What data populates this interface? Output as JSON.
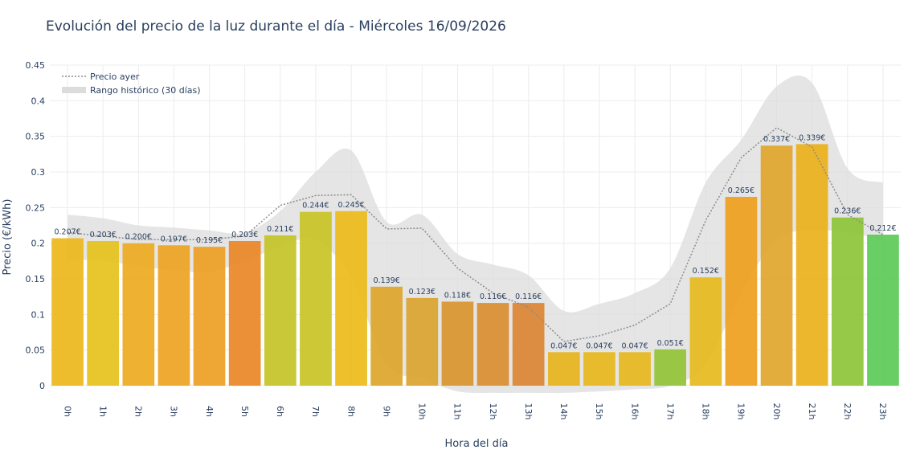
{
  "chart_data": {
    "type": "bar",
    "title": "Evolución del precio de la luz durante el día - Miércoles 16/09/2026",
    "xlabel": "Hora del día",
    "ylabel": "Precio (€/kWh)",
    "ylim": [
      0,
      0.45
    ],
    "yticks": [
      "0",
      "0.05",
      "0.1",
      "0.15",
      "0.2",
      "0.25",
      "0.3",
      "0.35",
      "0.4",
      "0.45"
    ],
    "categories": [
      "0h",
      "1h",
      "2h",
      "3h",
      "4h",
      "5h",
      "6h",
      "7h",
      "8h",
      "9h",
      "10h",
      "11h",
      "12h",
      "13h",
      "14h",
      "15h",
      "16h",
      "17h",
      "18h",
      "19h",
      "20h",
      "21h",
      "22h",
      "23h"
    ],
    "values": [
      0.207,
      0.203,
      0.2,
      0.197,
      0.195,
      0.203,
      0.211,
      0.244,
      0.245,
      0.139,
      0.123,
      0.118,
      0.116,
      0.116,
      0.047,
      0.047,
      0.047,
      0.051,
      0.152,
      0.265,
      0.337,
      0.339,
      0.236,
      0.212
    ],
    "labels": [
      "0.207€",
      "0.203€",
      "0.200€",
      "0.197€",
      "0.195€",
      "0.203€",
      "0.211€",
      "0.244€",
      "0.245€",
      "0.139€",
      "0.123€",
      "0.118€",
      "0.116€",
      "0.116€",
      "0.047€",
      "0.047€",
      "0.047€",
      "0.051€",
      "0.152€",
      "0.265€",
      "0.337€",
      "0.339€",
      "0.236€",
      "0.212€"
    ],
    "bar_colors": [
      "#ecb71c",
      "#e6c21c",
      "#eeaa1f",
      "#eea322",
      "#eda023",
      "#e98726",
      "#c4c327",
      "#c8c325",
      "#ebbb1a",
      "#dda62c",
      "#dba430",
      "#d9952f",
      "#db8e31",
      "#db8533",
      "#e8b41c",
      "#e8b71c",
      "#e6b71e",
      "#92c437",
      "#e6ba1c",
      "#ee9f1e",
      "#dfa62c",
      "#eab01b",
      "#8ec43a",
      "#5ccb57"
    ],
    "series": [
      {
        "name": "Precio ayer",
        "style": "dotted",
        "color": "#8c8c8c",
        "values": [
          0.215,
          0.21,
          0.205,
          0.205,
          0.205,
          0.21,
          0.253,
          0.267,
          0.268,
          0.22,
          0.221,
          0.165,
          0.13,
          0.11,
          0.062,
          0.07,
          0.085,
          0.115,
          0.232,
          0.32,
          0.362,
          0.335,
          0.24,
          0.212
        ]
      },
      {
        "name": "Rango histórico (30 días)",
        "style": "band",
        "color": "#dcdcdc",
        "upper": [
          0.24,
          0.235,
          0.225,
          0.222,
          0.218,
          0.215,
          0.245,
          0.3,
          0.33,
          0.23,
          0.24,
          0.185,
          0.17,
          0.155,
          0.105,
          0.115,
          0.13,
          0.165,
          0.285,
          0.345,
          0.42,
          0.425,
          0.305,
          0.285
        ],
        "lower": [
          0.178,
          0.175,
          0.168,
          0.162,
          0.16,
          0.175,
          0.195,
          0.205,
          0.15,
          0.03,
          0.01,
          -0.008,
          -0.01,
          -0.01,
          -0.01,
          -0.008,
          -0.005,
          0.0,
          0.03,
          0.13,
          0.205,
          0.218,
          0.215,
          0.205
        ]
      }
    ],
    "grid": true,
    "legend_placement": "top-left"
  }
}
